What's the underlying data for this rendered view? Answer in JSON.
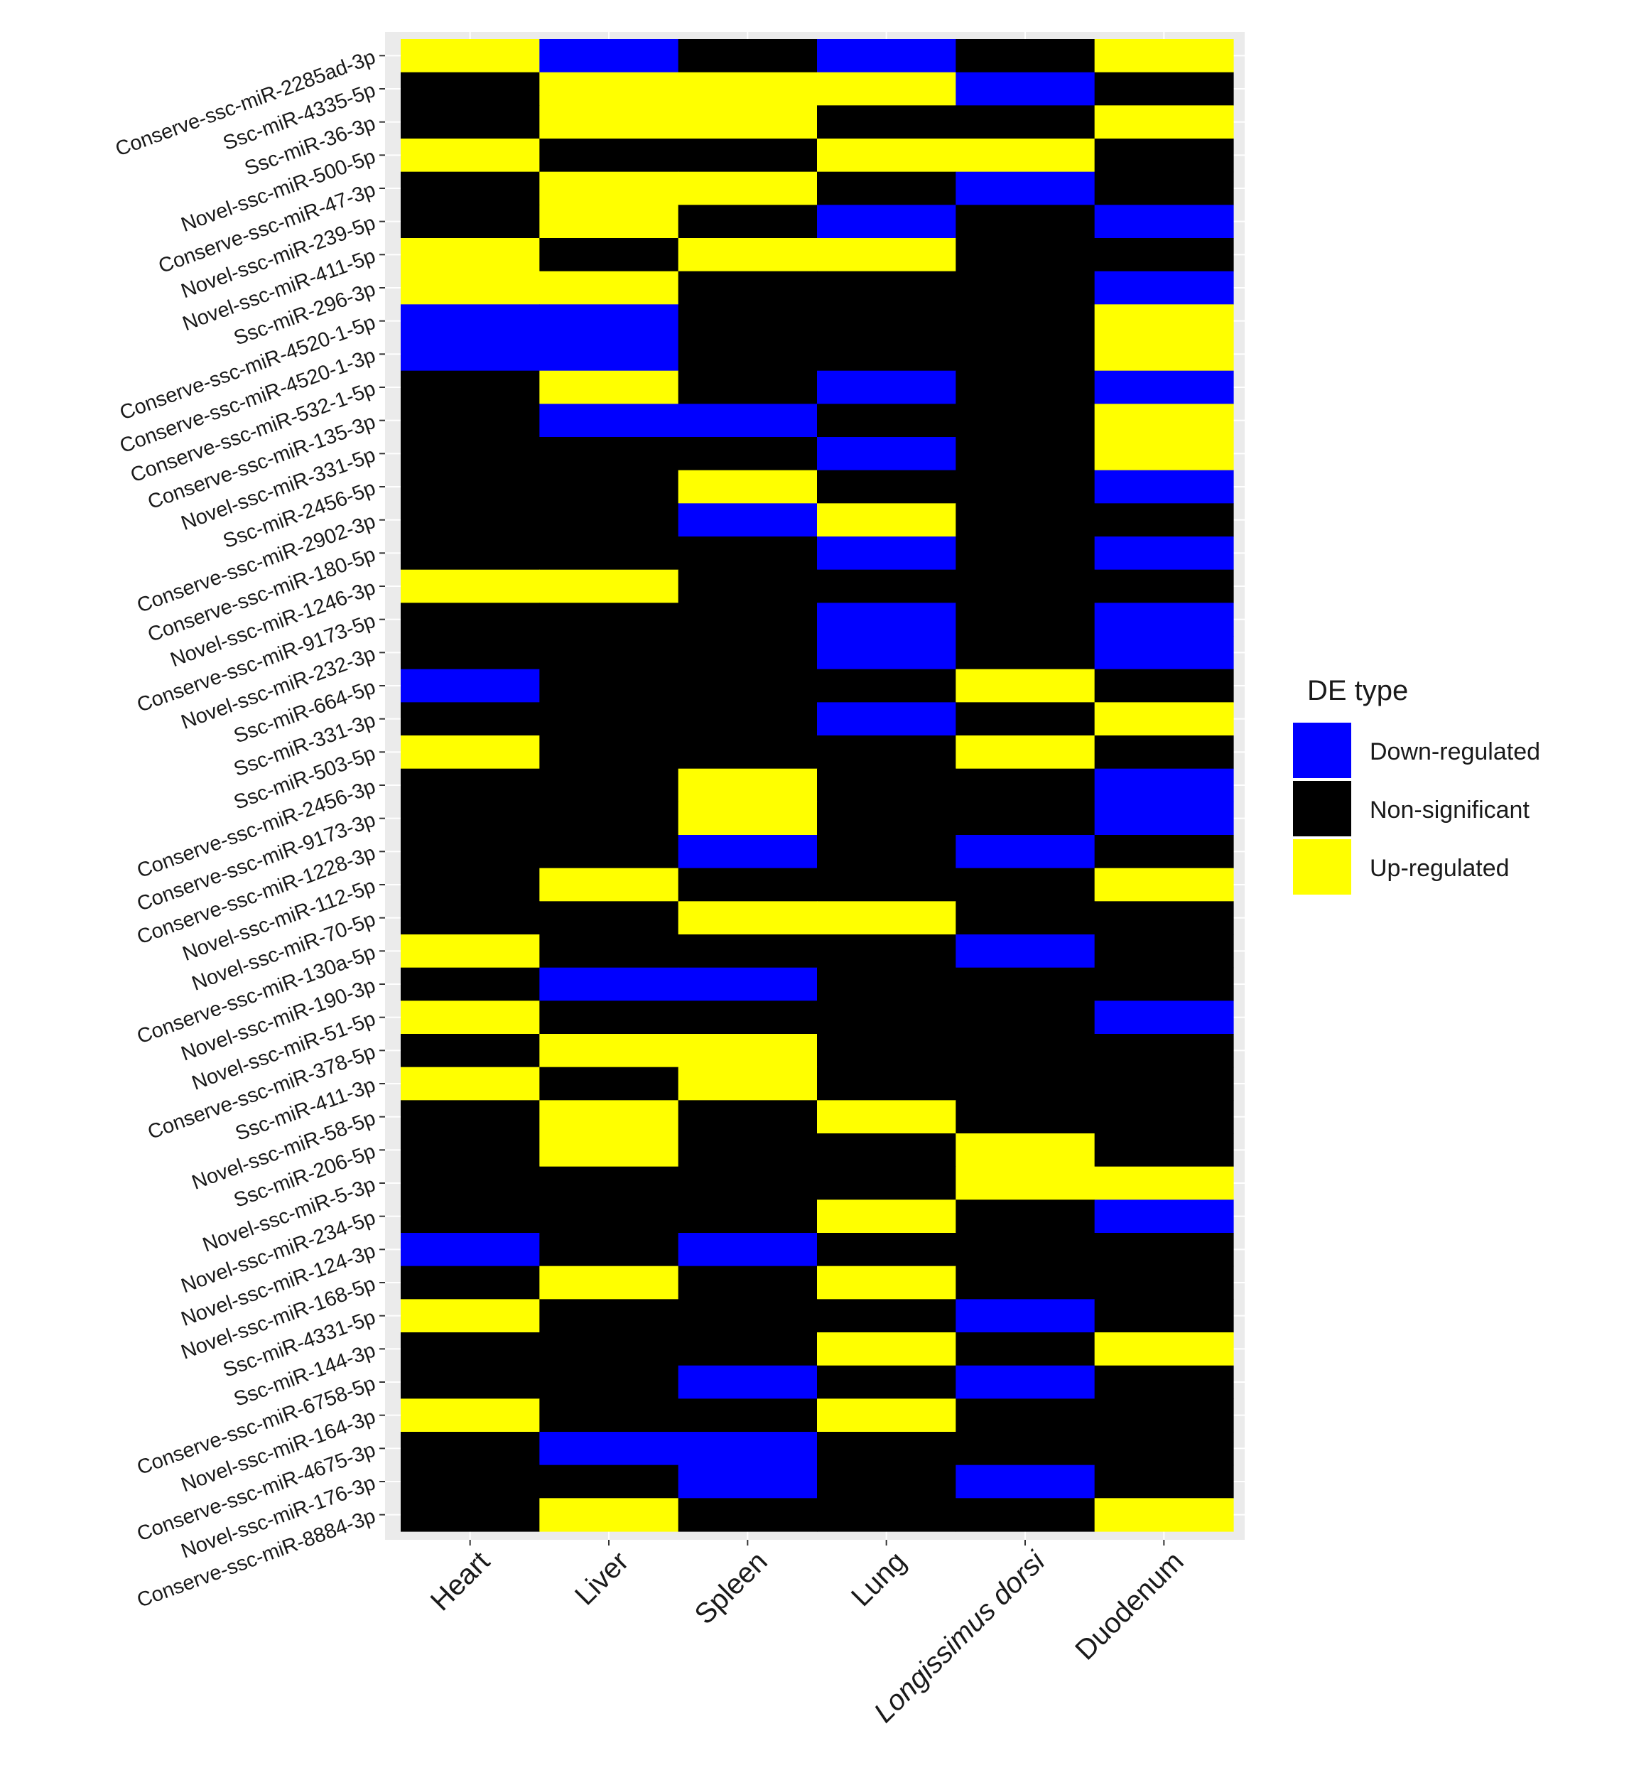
{
  "chart_data": {
    "type": "heatmap",
    "title": "",
    "xlabel": "",
    "ylabel": "",
    "x_categories": [
      {
        "name": "Heart",
        "italic": false
      },
      {
        "name": "Liver",
        "italic": false
      },
      {
        "name": "Spleen",
        "italic": false
      },
      {
        "name": "Lung",
        "italic": false
      },
      {
        "name": "Longissimus dorsi",
        "italic": true
      },
      {
        "name": "Duodenum",
        "italic": false
      }
    ],
    "y_categories": [
      "Conserve-ssc-miR-2285ad-3p",
      "Ssc-miR-4335-5p",
      "Ssc-miR-36-3p",
      "Novel-ssc-miR-500-5p",
      "Conserve-ssc-miR-47-3p",
      "Novel-ssc-miR-239-5p",
      "Novel-ssc-miR-411-5p",
      "Ssc-miR-296-3p",
      "Conserve-ssc-miR-4520-1-5p",
      "Conserve-ssc-miR-4520-1-3p",
      "Conserve-ssc-miR-532-1-5p",
      "Conserve-ssc-miR-135-3p",
      "Novel-ssc-miR-331-5p",
      "Ssc-miR-2456-5p",
      "Conserve-ssc-miR-2902-3p",
      "Conserve-ssc-miR-180-5p",
      "Novel-ssc-miR-1246-3p",
      "Conserve-ssc-miR-9173-5p",
      "Novel-ssc-miR-232-3p",
      "Ssc-miR-664-5p",
      "Ssc-miR-331-3p",
      "Ssc-miR-503-5p",
      "Conserve-ssc-miR-2456-3p",
      "Conserve-ssc-miR-9173-3p",
      "Conserve-ssc-miR-1228-3p",
      "Novel-ssc-miR-112-5p",
      "Novel-ssc-miR-70-5p",
      "Conserve-ssc-miR-130a-5p",
      "Novel-ssc-miR-190-3p",
      "Novel-ssc-miR-51-5p",
      "Conserve-ssc-miR-378-5p",
      "Ssc-miR-411-3p",
      "Novel-ssc-miR-58-5p",
      "Ssc-miR-206-5p",
      "Novel-ssc-miR-5-3p",
      "Novel-ssc-miR-234-5p",
      "Novel-ssc-miR-124-3p",
      "Novel-ssc-miR-168-5p",
      "Ssc-miR-4331-5p",
      "Ssc-miR-144-3p",
      "Conserve-ssc-miR-6758-5p",
      "Novel-ssc-miR-164-3p",
      "Conserve-ssc-miR-4675-3p",
      "Novel-ssc-miR-176-3p",
      "Conserve-ssc-miR-8884-3p"
    ],
    "values": [
      [
        "U",
        "D",
        "N",
        "D",
        "N",
        "U"
      ],
      [
        "N",
        "U",
        "U",
        "U",
        "D",
        "N"
      ],
      [
        "N",
        "U",
        "U",
        "N",
        "N",
        "U"
      ],
      [
        "U",
        "N",
        "N",
        "U",
        "U",
        "N"
      ],
      [
        "N",
        "U",
        "U",
        "N",
        "D",
        "N"
      ],
      [
        "N",
        "U",
        "N",
        "D",
        "N",
        "D"
      ],
      [
        "U",
        "N",
        "U",
        "U",
        "N",
        "N"
      ],
      [
        "U",
        "U",
        "N",
        "N",
        "N",
        "D"
      ],
      [
        "D",
        "D",
        "N",
        "N",
        "N",
        "U"
      ],
      [
        "D",
        "D",
        "N",
        "N",
        "N",
        "U"
      ],
      [
        "N",
        "U",
        "N",
        "D",
        "N",
        "D"
      ],
      [
        "N",
        "D",
        "D",
        "N",
        "N",
        "U"
      ],
      [
        "N",
        "N",
        "N",
        "D",
        "N",
        "U"
      ],
      [
        "N",
        "N",
        "U",
        "N",
        "N",
        "D"
      ],
      [
        "N",
        "N",
        "D",
        "U",
        "N",
        "N"
      ],
      [
        "N",
        "N",
        "N",
        "D",
        "N",
        "D"
      ],
      [
        "U",
        "U",
        "N",
        "N",
        "N",
        "N"
      ],
      [
        "N",
        "N",
        "N",
        "D",
        "N",
        "D"
      ],
      [
        "N",
        "N",
        "N",
        "D",
        "N",
        "D"
      ],
      [
        "D",
        "N",
        "N",
        "N",
        "U",
        "N"
      ],
      [
        "N",
        "N",
        "N",
        "D",
        "N",
        "U"
      ],
      [
        "U",
        "N",
        "N",
        "N",
        "U",
        "N"
      ],
      [
        "N",
        "N",
        "U",
        "N",
        "N",
        "D"
      ],
      [
        "N",
        "N",
        "U",
        "N",
        "N",
        "D"
      ],
      [
        "N",
        "N",
        "D",
        "N",
        "D",
        "N"
      ],
      [
        "N",
        "U",
        "N",
        "N",
        "N",
        "U"
      ],
      [
        "N",
        "N",
        "U",
        "U",
        "N",
        "N"
      ],
      [
        "U",
        "N",
        "N",
        "N",
        "D",
        "N"
      ],
      [
        "N",
        "D",
        "D",
        "N",
        "N",
        "N"
      ],
      [
        "U",
        "N",
        "N",
        "N",
        "N",
        "D"
      ],
      [
        "N",
        "U",
        "U",
        "N",
        "N",
        "N"
      ],
      [
        "U",
        "N",
        "U",
        "N",
        "N",
        "N"
      ],
      [
        "N",
        "U",
        "N",
        "U",
        "N",
        "N"
      ],
      [
        "N",
        "U",
        "N",
        "N",
        "U",
        "N"
      ],
      [
        "N",
        "N",
        "N",
        "N",
        "U",
        "U"
      ],
      [
        "N",
        "N",
        "N",
        "U",
        "N",
        "D"
      ],
      [
        "D",
        "N",
        "D",
        "N",
        "N",
        "N"
      ],
      [
        "N",
        "U",
        "N",
        "U",
        "N",
        "N"
      ],
      [
        "U",
        "N",
        "N",
        "N",
        "D",
        "N"
      ],
      [
        "N",
        "N",
        "N",
        "U",
        "N",
        "U"
      ],
      [
        "N",
        "N",
        "D",
        "N",
        "D",
        "N"
      ],
      [
        "U",
        "N",
        "N",
        "U",
        "N",
        "N"
      ],
      [
        "N",
        "D",
        "D",
        "N",
        "N",
        "N"
      ],
      [
        "N",
        "N",
        "D",
        "N",
        "D",
        "N"
      ],
      [
        "N",
        "U",
        "N",
        "N",
        "N",
        "U"
      ]
    ],
    "value_codes": {
      "D": "Down-regulated",
      "N": "Non-significant",
      "U": "Up-regulated"
    },
    "colors": {
      "D": "#0000ff",
      "N": "#000000",
      "U": "#ffff00",
      "panel": "#ebebeb",
      "grid": "#ffffff"
    },
    "legend": {
      "title": "DE type",
      "position": "right",
      "items": [
        {
          "code": "D",
          "label": "Down-regulated"
        },
        {
          "code": "N",
          "label": "Non-significant"
        },
        {
          "code": "U",
          "label": "Up-regulated"
        }
      ]
    }
  }
}
